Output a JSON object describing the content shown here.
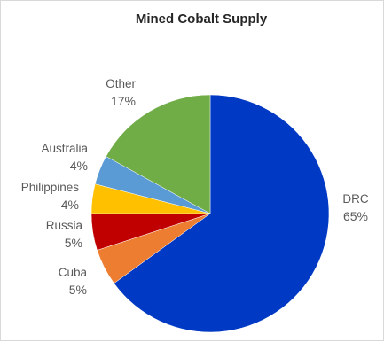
{
  "chart_data": {
    "type": "pie",
    "title": "Mined Cobalt Supply",
    "start_angle_deg": 0,
    "direction": "clockwise",
    "slices": [
      {
        "label": "DRC",
        "value": 65,
        "value_label": "65%",
        "color": "#0039c4"
      },
      {
        "label": "Cuba",
        "value": 5,
        "value_label": "5%",
        "color": "#ed7d31"
      },
      {
        "label": "Russia",
        "value": 5,
        "value_label": "5%",
        "color": "#c00000"
      },
      {
        "label": "Philippines",
        "value": 4,
        "value_label": "4%",
        "color": "#ffc000"
      },
      {
        "label": "Australia",
        "value": 4,
        "value_label": "4%",
        "color": "#5b9bd5"
      },
      {
        "label": "Other",
        "value": 17,
        "value_label": "17%",
        "color": "#70ad47"
      }
    ]
  }
}
